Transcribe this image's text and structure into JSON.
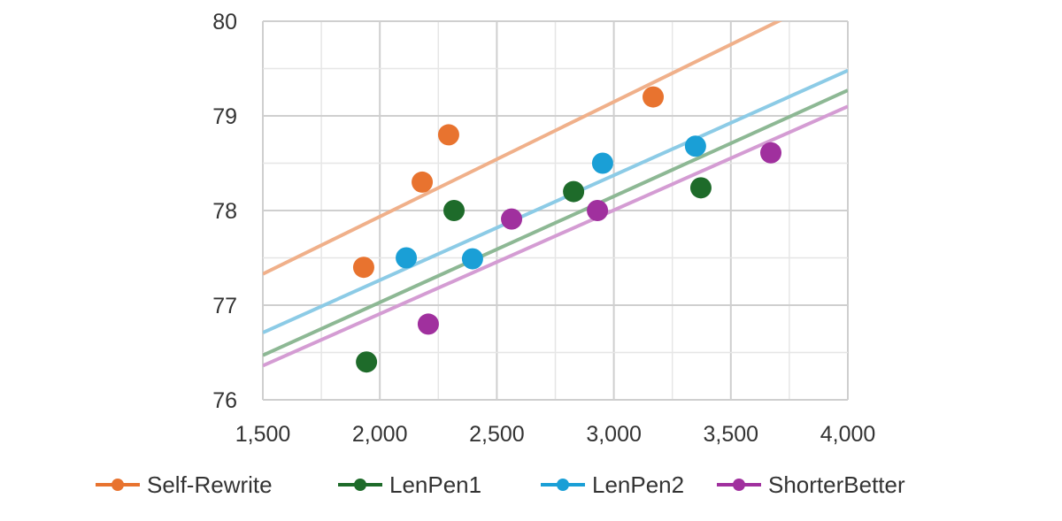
{
  "chart_data": {
    "type": "scatter",
    "title": "",
    "xlabel": "",
    "ylabel": "",
    "xlim": [
      1500,
      4000
    ],
    "ylim": [
      76,
      80
    ],
    "grid": true,
    "legend_position": "bottom",
    "x_ticks": [
      1500,
      2000,
      2500,
      3000,
      3500,
      4000
    ],
    "x_tick_labels": [
      "1,500",
      "2,000",
      "2,500",
      "3,000",
      "3,500",
      "4,000"
    ],
    "y_ticks": [
      76,
      77,
      78,
      79,
      80
    ],
    "y_tick_labels": [
      "76",
      "77",
      "78",
      "79",
      "80"
    ],
    "series": [
      {
        "name": "Self-Rewrite",
        "color": "#E8732F",
        "trend_color": "#F0B08A",
        "x": [
          1931,
          2181,
          2294,
          3168
        ],
        "y": [
          77.4,
          78.3,
          78.8,
          79.2
        ],
        "trendline": {
          "x": [
            1500,
            4000
          ],
          "y": [
            77.33,
            80.36
          ]
        }
      },
      {
        "name": "LenPen1",
        "color": "#1E6B2A",
        "trend_color": "#8DB894",
        "x": [
          1943,
          2317,
          2828,
          3372
        ],
        "y": [
          76.4,
          78.0,
          78.2,
          78.24
        ],
        "trendline": {
          "x": [
            1500,
            4000
          ],
          "y": [
            76.47,
            79.27
          ]
        }
      },
      {
        "name": "LenPen2",
        "color": "#1A9FD6",
        "trend_color": "#8CCBE6",
        "x": [
          2113,
          2396,
          2952,
          3349
        ],
        "y": [
          77.5,
          77.49,
          78.5,
          78.68
        ],
        "trendline": {
          "x": [
            1500,
            4000
          ],
          "y": [
            76.71,
            79.48
          ]
        }
      },
      {
        "name": "ShorterBetter",
        "color": "#A0309E",
        "trend_color": "#D49CD3",
        "x": [
          2207,
          2563,
          2930,
          3671
        ],
        "y": [
          76.8,
          77.91,
          78.0,
          78.61
        ],
        "trendline": {
          "x": [
            1500,
            4000
          ],
          "y": [
            76.36,
            79.1
          ]
        }
      }
    ]
  }
}
